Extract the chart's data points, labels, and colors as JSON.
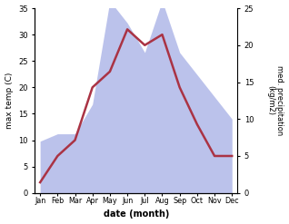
{
  "months": [
    "Jan",
    "Feb",
    "Mar",
    "Apr",
    "May",
    "Jun",
    "Jul",
    "Aug",
    "Sep",
    "Oct",
    "Nov",
    "Dec"
  ],
  "temperature": [
    2,
    7,
    10,
    20,
    23,
    31,
    28,
    30,
    20,
    13,
    7,
    7
  ],
  "precipitation": [
    7,
    8,
    8,
    12,
    26,
    23,
    19,
    26,
    19,
    16,
    13,
    10
  ],
  "temp_color": "#aa3344",
  "precip_color": "#b0b8e8",
  "precip_alpha": 0.85,
  "temp_ylim": [
    0,
    35
  ],
  "precip_ylim": [
    0,
    25
  ],
  "temp_yticks": [
    0,
    5,
    10,
    15,
    20,
    25,
    30,
    35
  ],
  "precip_yticks": [
    0,
    5,
    10,
    15,
    20,
    25
  ],
  "ylabel_left": "max temp (C)",
  "ylabel_right": "med. precipitation\n(kg/m2)",
  "xlabel": "date (month)",
  "line_width": 1.8,
  "background_color": "#ffffff"
}
